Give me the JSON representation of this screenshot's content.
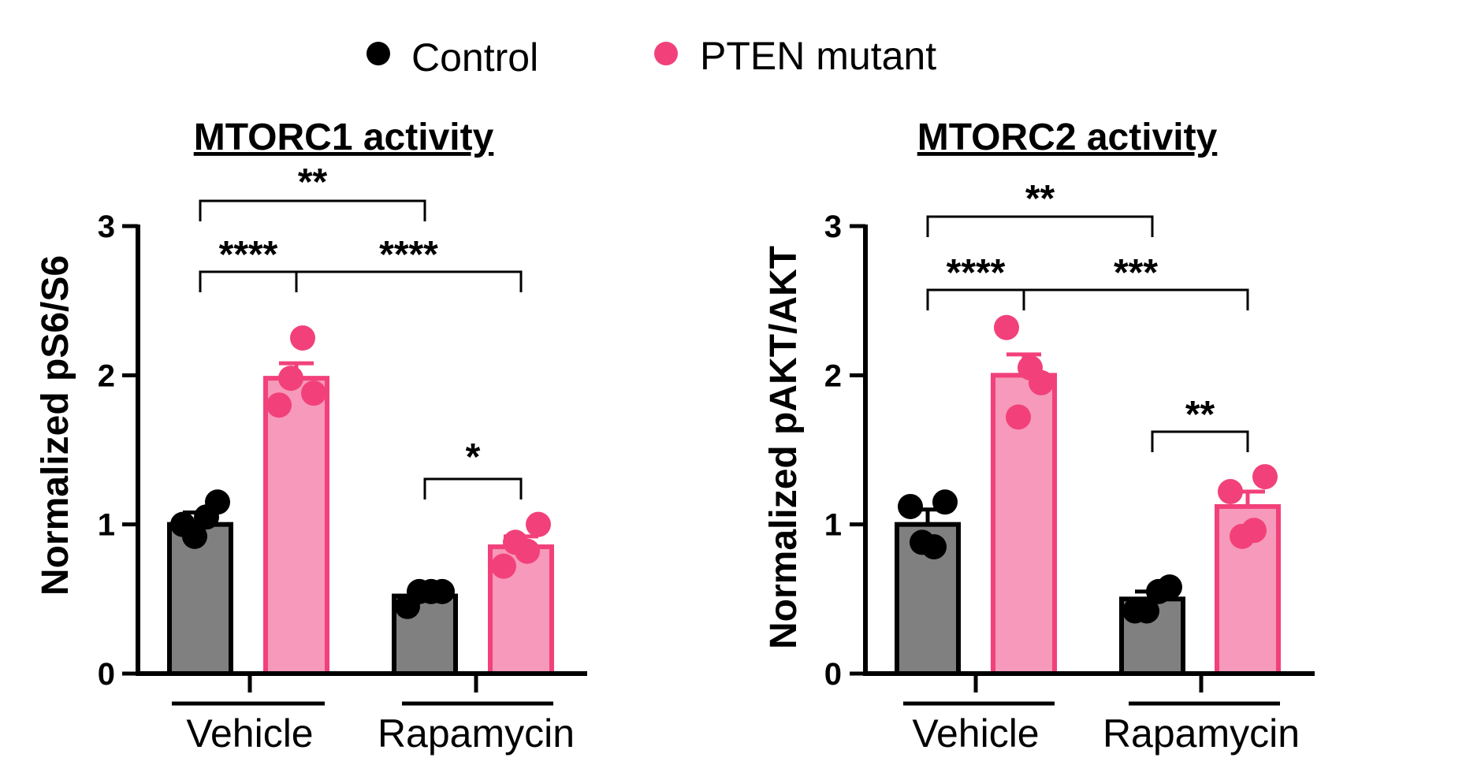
{
  "legend": {
    "placement": "top-center",
    "items": [
      {
        "label": "Control",
        "color": "#000000"
      },
      {
        "label": "PTEN mutant",
        "color": "#f2417a"
      }
    ]
  },
  "colors": {
    "control_bar": "#808080",
    "control_edge": "#000000",
    "mutant_bar": "#f799ba",
    "mutant_edge": "#f2417a",
    "control_point": "#000000",
    "mutant_point": "#f2417a"
  },
  "chart_data": [
    {
      "type": "bar",
      "title": "MTORC1 activity",
      "ylabel": "Normalized pS6/S6",
      "ylim": [
        0,
        3
      ],
      "yticks": [
        "0",
        "1",
        "2",
        "3"
      ],
      "groups": [
        "Vehicle",
        "Rapamycin"
      ],
      "series": [
        {
          "name": "Control",
          "values": [
            1.0,
            0.52
          ],
          "sem": [
            0.08,
            0.03
          ],
          "points": [
            [
              1.0,
              0.92,
              1.05,
              1.15
            ],
            [
              0.45,
              0.55,
              0.55,
              0.55
            ]
          ]
        },
        {
          "name": "PTEN mutant",
          "values": [
            1.98,
            0.85
          ],
          "sem": [
            0.1,
            0.07
          ],
          "points": [
            [
              1.8,
              1.98,
              2.25,
              1.88
            ],
            [
              0.72,
              0.88,
              0.82,
              1.0
            ]
          ]
        }
      ],
      "significance": [
        {
          "from": [
            0,
            0
          ],
          "to": [
            0,
            1
          ],
          "label": "****",
          "level": 0
        },
        {
          "from": [
            0,
            0
          ],
          "to": [
            1,
            0
          ],
          "label": "**",
          "level": 1
        },
        {
          "from": [
            0,
            1
          ],
          "to": [
            1,
            1
          ],
          "label": "****",
          "level": 0
        },
        {
          "from": [
            1,
            0
          ],
          "to": [
            1,
            1
          ],
          "label": "*",
          "level": 0
        }
      ],
      "grid": false
    },
    {
      "type": "bar",
      "title": "MTORC2 activity",
      "ylabel": "Normalized pAKT/AKT",
      "ylim": [
        0,
        3
      ],
      "yticks": [
        "0",
        "1",
        "2",
        "3"
      ],
      "groups": [
        "Vehicle",
        "Rapamycin"
      ],
      "series": [
        {
          "name": "Control",
          "values": [
            1.0,
            0.5
          ],
          "sem": [
            0.1,
            0.05
          ],
          "points": [
            [
              1.12,
              0.88,
              0.85,
              1.15
            ],
            [
              0.42,
              0.42,
              0.55,
              0.58
            ]
          ]
        },
        {
          "name": "PTEN mutant",
          "values": [
            2.0,
            1.12
          ],
          "sem": [
            0.14,
            0.1
          ],
          "points": [
            [
              2.32,
              1.72,
              2.05,
              1.95
            ],
            [
              1.22,
              0.92,
              0.96,
              1.32
            ]
          ]
        }
      ],
      "significance": [
        {
          "from": [
            0,
            0
          ],
          "to": [
            0,
            1
          ],
          "label": "****",
          "level": 0
        },
        {
          "from": [
            0,
            0
          ],
          "to": [
            1,
            0
          ],
          "label": "**",
          "level": 1
        },
        {
          "from": [
            0,
            1
          ],
          "to": [
            1,
            1
          ],
          "label": "***",
          "level": 0
        },
        {
          "from": [
            1,
            0
          ],
          "to": [
            1,
            1
          ],
          "label": "**",
          "level": 0
        }
      ],
      "grid": false
    }
  ]
}
